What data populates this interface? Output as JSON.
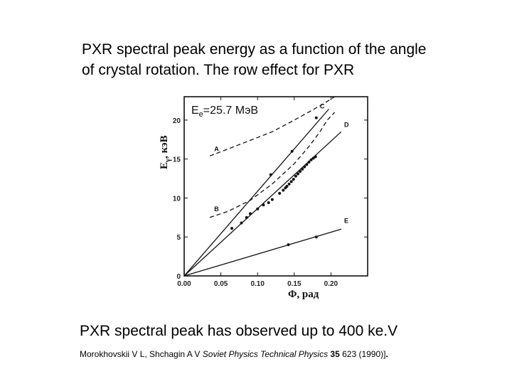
{
  "slide": {
    "title_line1": "PXR spectral peak energy as a function of the angle",
    "title_line2": "of crystal rotation. The row effect for PXR",
    "subtitle": "PXR spectral peak has observed up to 400 ke.V",
    "citation": {
      "authors": "Morokhovskii V L, Shchagin A V ",
      "journal": "Soviet Physics Technical Physics",
      "volume": "35",
      "rest": " 623 (1990)]",
      "end": "."
    }
  },
  "chart_data": {
    "type": "line",
    "title": "",
    "inset_label": "Ee=25.7 МэВ",
    "inset_main": "E",
    "inset_sub": "e",
    "inset_value": "=25.7 МэВ",
    "xlabel": "Φ, рад",
    "ylabel": "Eγ, кэВ",
    "ylabel_main": "E",
    "ylabel_sub": "γ",
    "ylabel_unit": ", кэВ",
    "xlim": [
      0,
      0.25
    ],
    "ylim": [
      0,
      23
    ],
    "x_ticks": [
      "0.00",
      "0.05",
      "0.10",
      "0.15",
      "0.20"
    ],
    "x_tick_values": [
      0,
      0.05,
      0.1,
      0.15,
      0.2
    ],
    "y_ticks": [
      "0",
      "5",
      "10",
      "15",
      "20"
    ],
    "y_tick_values": [
      0,
      5,
      10,
      15,
      20
    ],
    "grid": false,
    "series": [
      {
        "label": "A",
        "style": "dashed",
        "label_x": 0.041,
        "label_y": 16.0,
        "x": [
          0.035,
          0.06,
          0.09,
          0.12,
          0.15,
          0.175,
          0.19,
          0.205
        ],
        "y": [
          15.4,
          16.3,
          17.4,
          18.5,
          20.0,
          21.3,
          22.1,
          23.0
        ]
      },
      {
        "label": "B",
        "style": "dashed",
        "label_x": 0.041,
        "label_y": 8.3,
        "x": [
          0.035,
          0.06,
          0.09,
          0.12,
          0.15,
          0.17,
          0.185,
          0.195,
          0.205
        ],
        "y": [
          7.5,
          8.3,
          9.7,
          11.8,
          14.4,
          16.6,
          18.5,
          20.0,
          21.0
        ]
      },
      {
        "label": "C",
        "style": "solid",
        "label_x": 0.185,
        "label_y": 21.5,
        "x": [
          0,
          0.197
        ],
        "y": [
          0,
          21.4
        ]
      },
      {
        "label": "D",
        "style": "solid",
        "label_x": 0.218,
        "label_y": 19.1,
        "x": [
          0,
          0.214
        ],
        "y": [
          0,
          18.5
        ]
      },
      {
        "label": "E",
        "style": "solid",
        "label_x": 0.218,
        "label_y": 6.8,
        "x": [
          0,
          0.214
        ],
        "y": [
          0,
          6.0
        ]
      }
    ],
    "points": [
      {
        "x": 0.065,
        "y": 6.1
      },
      {
        "x": 0.078,
        "y": 6.8
      },
      {
        "x": 0.085,
        "y": 7.5
      },
      {
        "x": 0.09,
        "y": 8.0
      },
      {
        "x": 0.1,
        "y": 8.6
      },
      {
        "x": 0.108,
        "y": 9.1
      },
      {
        "x": 0.115,
        "y": 9.4
      },
      {
        "x": 0.12,
        "y": 9.8
      },
      {
        "x": 0.13,
        "y": 10.6
      },
      {
        "x": 0.135,
        "y": 11.0
      },
      {
        "x": 0.138,
        "y": 11.3
      },
      {
        "x": 0.14,
        "y": 11.5
      },
      {
        "x": 0.143,
        "y": 11.8
      },
      {
        "x": 0.146,
        "y": 12.1
      },
      {
        "x": 0.149,
        "y": 12.4
      },
      {
        "x": 0.152,
        "y": 12.8
      },
      {
        "x": 0.155,
        "y": 13.1
      },
      {
        "x": 0.158,
        "y": 13.4
      },
      {
        "x": 0.161,
        "y": 13.7
      },
      {
        "x": 0.164,
        "y": 14.0
      },
      {
        "x": 0.167,
        "y": 14.3
      },
      {
        "x": 0.17,
        "y": 14.6
      },
      {
        "x": 0.173,
        "y": 14.9
      },
      {
        "x": 0.176,
        "y": 15.1
      },
      {
        "x": 0.179,
        "y": 15.3
      },
      {
        "x": 0.118,
        "y": 13.0
      },
      {
        "x": 0.147,
        "y": 16.0
      },
      {
        "x": 0.18,
        "y": 20.3
      },
      {
        "x": 0.142,
        "y": 4.0
      },
      {
        "x": 0.18,
        "y": 5.0
      }
    ],
    "colors": {
      "line": "#111111",
      "background": "#ffffff"
    }
  }
}
